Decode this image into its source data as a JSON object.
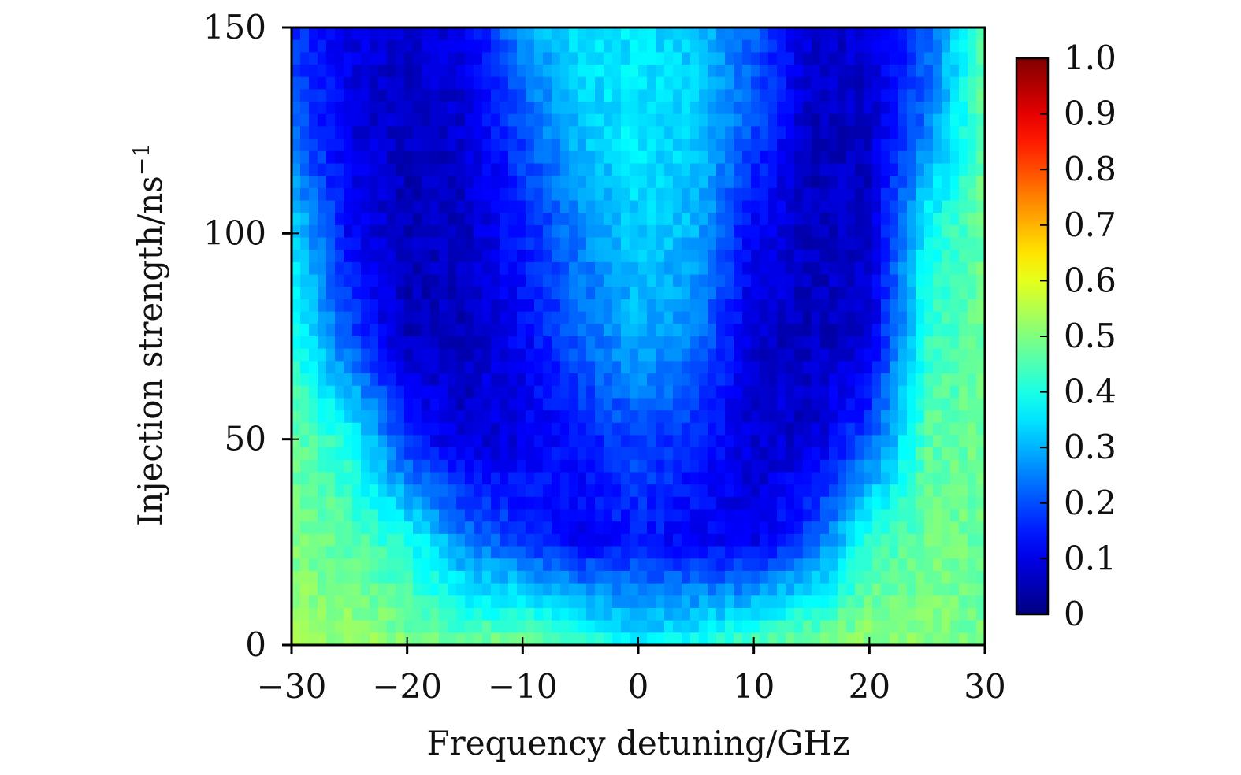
{
  "chart_data": {
    "type": "heatmap",
    "title": "",
    "xlabel": "Frequency detuning/GHz",
    "ylabel_text": "Injection strength/ns",
    "ylabel_superscript": "−1",
    "xlim": [
      -30,
      30
    ],
    "ylim": [
      0,
      150
    ],
    "x_ticks": [
      -30,
      -20,
      -10,
      0,
      10,
      20,
      30
    ],
    "x_tick_labels": [
      "−30",
      "−20",
      "−10",
      "0",
      "10",
      "20",
      "30"
    ],
    "y_ticks": [
      0,
      50,
      100,
      150
    ],
    "y_tick_labels": [
      "0",
      "50",
      "100",
      "150"
    ],
    "colorbar": {
      "colormap": "jet",
      "range": [
        0,
        1.0
      ],
      "ticks": [
        0,
        0.1,
        0.2,
        0.3,
        0.4,
        0.5,
        0.6,
        0.7,
        0.8,
        0.9,
        1.0
      ],
      "tick_labels": [
        "0",
        "0.1",
        "0.2",
        "0.3",
        "0.4",
        "0.5",
        "0.6",
        "0.7",
        "0.8",
        "0.9",
        "1.0"
      ],
      "placement": "right"
    },
    "grid": false,
    "sample_x": [
      -30,
      -25,
      -20,
      -15,
      -10,
      -5,
      0,
      5,
      10,
      15,
      20,
      25,
      30
    ],
    "sample_y": [
      0,
      25,
      50,
      75,
      100,
      125,
      150
    ],
    "values": [
      [
        0.52,
        0.53,
        0.5,
        0.48,
        0.5,
        0.44,
        0.35,
        0.4,
        0.45,
        0.5,
        0.52,
        0.5,
        0.48
      ],
      [
        0.5,
        0.46,
        0.4,
        0.25,
        0.18,
        0.12,
        0.15,
        0.12,
        0.1,
        0.2,
        0.42,
        0.48,
        0.48
      ],
      [
        0.48,
        0.4,
        0.16,
        0.08,
        0.1,
        0.15,
        0.2,
        0.16,
        0.08,
        0.08,
        0.2,
        0.46,
        0.48
      ],
      [
        0.4,
        0.2,
        0.06,
        0.06,
        0.12,
        0.22,
        0.3,
        0.25,
        0.08,
        0.06,
        0.08,
        0.42,
        0.48
      ],
      [
        0.35,
        0.12,
        0.06,
        0.07,
        0.15,
        0.25,
        0.33,
        0.3,
        0.12,
        0.06,
        0.07,
        0.38,
        0.48
      ],
      [
        0.22,
        0.1,
        0.06,
        0.08,
        0.2,
        0.32,
        0.36,
        0.33,
        0.2,
        0.06,
        0.07,
        0.25,
        0.48
      ],
      [
        0.18,
        0.1,
        0.08,
        0.1,
        0.28,
        0.35,
        0.35,
        0.32,
        0.22,
        0.08,
        0.08,
        0.2,
        0.48
      ]
    ]
  }
}
